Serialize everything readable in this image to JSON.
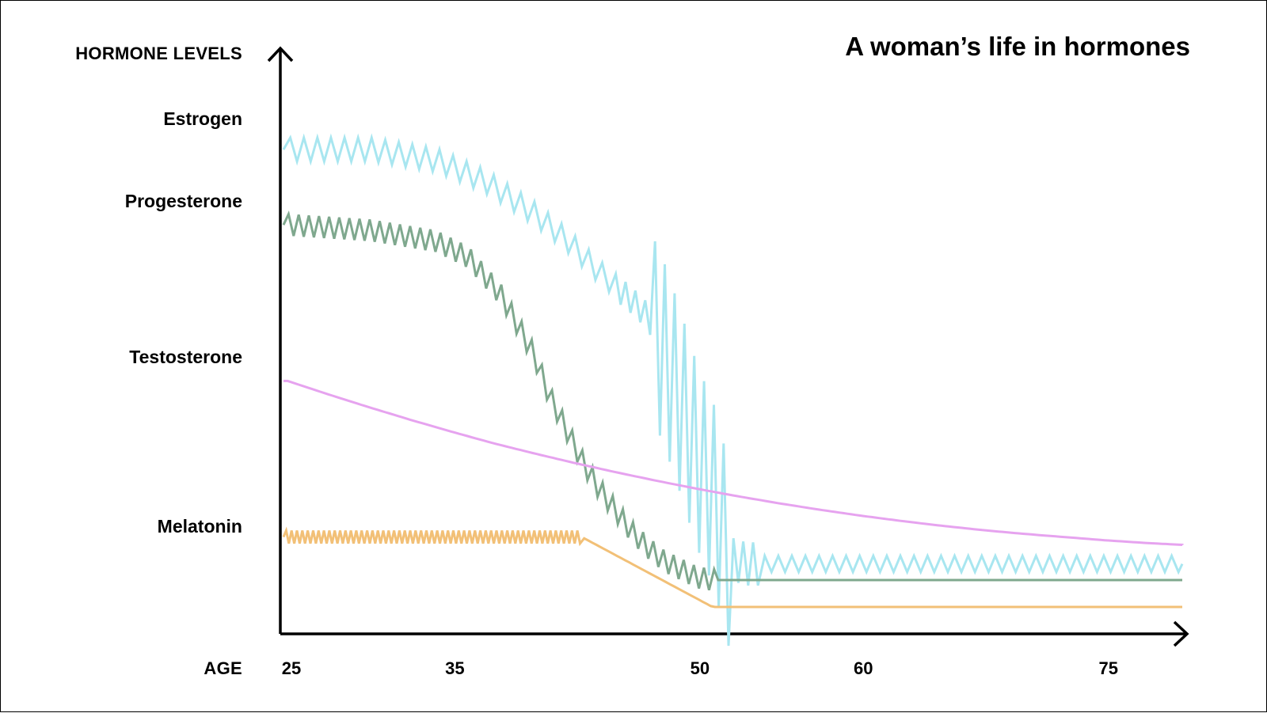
{
  "chart_data": {
    "type": "line",
    "title": "A woman’s life in hormones",
    "ylabel": "HORMONE LEVELS",
    "xlabel": "AGE",
    "x_ticks": [
      25,
      35,
      50,
      60,
      75
    ],
    "xlim": [
      25,
      80
    ],
    "ylim": [
      0,
      100
    ],
    "grid": false,
    "legend": "none",
    "series": [
      {
        "name": "Estrogen",
        "color": "#a8e6f0",
        "points": [
          [
            25,
            90
          ],
          [
            30,
            90
          ],
          [
            34,
            88
          ],
          [
            37,
            84
          ],
          [
            40,
            78
          ],
          [
            42,
            73
          ],
          [
            44,
            67
          ],
          [
            46,
            62
          ],
          [
            47,
            59
          ],
          [
            48,
            52
          ],
          [
            49,
            43
          ],
          [
            50,
            33
          ],
          [
            51,
            26
          ],
          [
            52,
            14
          ],
          [
            53,
            13
          ],
          [
            55,
            13
          ],
          [
            60,
            13
          ],
          [
            65,
            13
          ],
          [
            70,
            13
          ],
          [
            75,
            13
          ],
          [
            80,
            13
          ]
        ],
        "oscillation": [
          {
            "x_start": 25,
            "x_end": 45,
            "amplitude": 2.2,
            "period": 0.83
          },
          {
            "x_start": 45,
            "x_end": 47.3,
            "amplitude": 2.5,
            "period": 0.6
          },
          {
            "x_start": 47.3,
            "x_end": 52,
            "amplitude": 17,
            "period": 0.6
          },
          {
            "x_start": 52,
            "x_end": 54,
            "amplitude": 4,
            "period": 0.6
          },
          {
            "x_start": 54,
            "x_end": 80,
            "amplitude": 1.5,
            "period": 0.83
          }
        ]
      },
      {
        "name": "Progesterone",
        "color": "#7fa88e",
        "points": [
          [
            25,
            76
          ],
          [
            30,
            75
          ],
          [
            34,
            73
          ],
          [
            36,
            70
          ],
          [
            38,
            63
          ],
          [
            40,
            52
          ],
          [
            41,
            44
          ],
          [
            42,
            38
          ],
          [
            43,
            32
          ],
          [
            44,
            27
          ],
          [
            45,
            23
          ],
          [
            46,
            19
          ],
          [
            47,
            16
          ],
          [
            48,
            13.5
          ],
          [
            49,
            12
          ],
          [
            50,
            10.5
          ],
          [
            51,
            10
          ],
          [
            55,
            10
          ],
          [
            60,
            10
          ],
          [
            65,
            10
          ],
          [
            70,
            10
          ],
          [
            75,
            10
          ],
          [
            80,
            10
          ]
        ],
        "oscillation": [
          {
            "x_start": 25,
            "x_end": 51.3,
            "amplitude": 2,
            "period": 0.62
          }
        ]
      },
      {
        "name": "Testosterone",
        "color": "#e6a3ef",
        "points": [
          [
            25,
            47
          ],
          [
            27.5,
            44.5
          ],
          [
            30,
            42.1
          ],
          [
            32.5,
            39.8
          ],
          [
            35,
            37.6
          ],
          [
            37.5,
            35.5
          ],
          [
            40,
            33.6
          ],
          [
            42.5,
            31.8
          ],
          [
            45,
            30.1
          ],
          [
            47.5,
            28.5
          ],
          [
            50,
            27
          ],
          [
            52.5,
            25.6
          ],
          [
            55,
            24.3
          ],
          [
            57.5,
            23.1
          ],
          [
            60,
            22
          ],
          [
            62.5,
            21
          ],
          [
            65,
            20.1
          ],
          [
            67.5,
            19.3
          ],
          [
            70,
            18.6
          ],
          [
            72.5,
            18
          ],
          [
            75,
            17.4
          ],
          [
            77.5,
            16.9
          ],
          [
            80,
            16.5
          ]
        ],
        "oscillation": []
      },
      {
        "name": "Melatonin",
        "color": "#f2c077",
        "points": [
          [
            25,
            18
          ],
          [
            43,
            18
          ],
          [
            51,
            5
          ],
          [
            55,
            5
          ],
          [
            60,
            5
          ],
          [
            65,
            5
          ],
          [
            70,
            5
          ],
          [
            75,
            5
          ],
          [
            80,
            5
          ]
        ],
        "oscillation": [
          {
            "x_start": 25,
            "x_end": 43,
            "amplitude": 1.2,
            "period": 0.33
          }
        ]
      }
    ]
  }
}
